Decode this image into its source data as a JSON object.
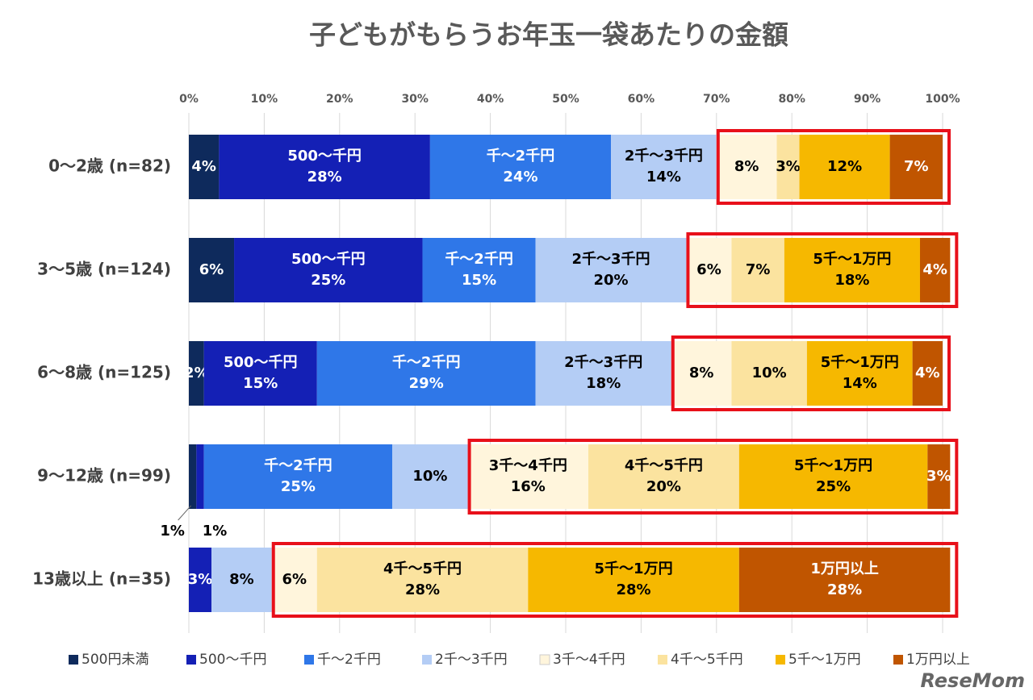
{
  "chart_data": {
    "type": "stacked_bar_horizontal_100",
    "title": "子どもがもらうお年玉一袋あたりの金額",
    "watermark": "ReseMom",
    "categories": [
      "0～2歳 (n=82)",
      "3～5歳  (n=124)",
      "6～8歳  (n=125)",
      "9～12歳 (n=99)",
      "13歳以上 (n=35)"
    ],
    "xlim": [
      0,
      100
    ],
    "xticks": [
      {
        "value": 0,
        "label": "0%"
      },
      {
        "value": 10,
        "label": "10%"
      },
      {
        "value": 20,
        "label": "20%"
      },
      {
        "value": 30,
        "label": "30%"
      },
      {
        "value": 40,
        "label": "40%"
      },
      {
        "value": 50,
        "label": "50%"
      },
      {
        "value": 60,
        "label": "60%"
      },
      {
        "value": 70,
        "label": "70%"
      },
      {
        "value": 80,
        "label": "80%"
      },
      {
        "value": 90,
        "label": "90%"
      },
      {
        "value": 100,
        "label": "100%"
      }
    ],
    "grid": true,
    "legend": "bottom",
    "series": [
      {
        "name": "500円未満",
        "color": "#0e2a5c",
        "values": [
          4,
          6,
          2,
          1,
          null
        ],
        "value_labels": [
          "4%",
          "6%",
          "2%",
          "1%",
          null
        ]
      },
      {
        "name": "500～千円",
        "color": "#1420b5",
        "values": [
          28,
          25,
          15,
          1,
          3
        ],
        "value_labels": [
          "500～千円\n28%",
          "500～千円\n25%",
          "500～千円\n15%",
          "1%",
          "3%"
        ]
      },
      {
        "name": "千～2千円",
        "color": "#2f77e8",
        "values": [
          24,
          15,
          29,
          25,
          null
        ],
        "value_labels": [
          "千～2千円\n24%",
          "千～2千円\n15%",
          "千～2千円\n29%",
          "千～2千円\n25%",
          null
        ]
      },
      {
        "name": "2千～3千円",
        "color": "#b4cdf5",
        "values": [
          14,
          20,
          18,
          10,
          8
        ],
        "value_labels": [
          "2千～3千円\n14%",
          "2千～3千円\n20%",
          "2千～3千円\n18%",
          "10%",
          "8%"
        ]
      },
      {
        "name": "3千～4千円",
        "color": "#fff5dc",
        "values": [
          8,
          6,
          8,
          16,
          6
        ],
        "value_labels": [
          "8%",
          "6%",
          "8%",
          "3千～4千円\n16%",
          "6%"
        ]
      },
      {
        "name": "4千～5千円",
        "color": "#fbe39f",
        "values": [
          3,
          7,
          10,
          20,
          28
        ],
        "value_labels": [
          "3%",
          "7%",
          "10%",
          "4千～5千円\n20%",
          "4千～5千円\n28%"
        ]
      },
      {
        "name": "5千～1万円",
        "color": "#f6b800",
        "values": [
          12,
          18,
          14,
          25,
          28
        ],
        "value_labels": [
          "12%",
          "5千～1万円\n18%",
          "5千～1万円\n14%",
          "5千～1万円\n25%",
          "5千～1万円\n28%"
        ]
      },
      {
        "name": "1万円以上",
        "color": "#c05500",
        "values": [
          7,
          4,
          4,
          3,
          28
        ],
        "value_labels": [
          "7%",
          "4%",
          "4%",
          "3%",
          "1万円以上\n28%"
        ]
      }
    ]
  }
}
